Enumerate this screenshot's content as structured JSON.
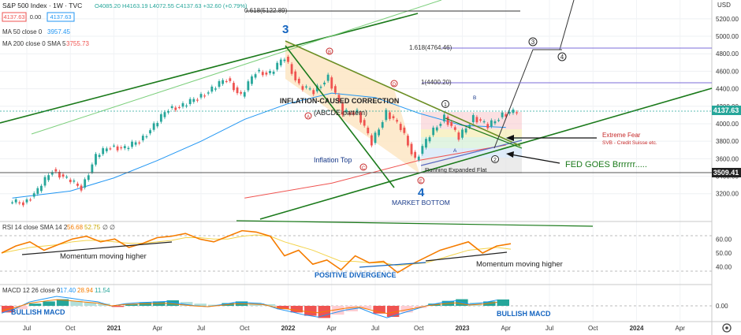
{
  "header": {
    "title": "S&P 500 Index · 1W · TVC",
    "price_box_1": "4137.63",
    "price_box_mid": "0.00",
    "price_box_2": "4137.63",
    "ohlc": "O4085.20 H4163.19 L4072.55 C4137.63 +32.60 (+0.79%)",
    "ma50_label": "MA 50 close 0",
    "ma50_value": "3957.45",
    "ma200_label": "MA 200 close 0 SMA 5",
    "ma200_value": "3755.73"
  },
  "colors": {
    "up": "#26a69a",
    "down": "#ef5350",
    "channel": "#1b7a1b",
    "ma50": "#2196f3",
    "ma200": "#ef5350",
    "fib": "#7b6cd9",
    "rsi": "#f57c00",
    "rsi_ma": "#f3d34a",
    "wedge_fill": "#fde6c4",
    "annot_blue": "#1565c0",
    "annot_red": "#c62828"
  },
  "chart_data": [
    {
      "type": "candlestick",
      "title": "S&P 500 Index · 1W · TVC",
      "ylabel": "USD",
      "x_ticks": [
        "Jul",
        "Oct",
        "2021",
        "Apr",
        "Jul",
        "Oct",
        "2022",
        "Apr",
        "Jul",
        "Oct",
        "2023",
        "Apr",
        "Jul",
        "Oct",
        "2024",
        "Apr"
      ],
      "y_ticks": [
        3200,
        3400,
        3600,
        3800,
        4000,
        4200,
        4400,
        4600,
        4800,
        5000,
        5200
      ],
      "ylim": [
        3080,
        5280
      ],
      "grid": true,
      "last_price": 4137.63,
      "support_level": 3509.41,
      "series_close": [
        {
          "date": "2020-06",
          "close": 3100
        },
        {
          "date": "2020-07",
          "close": 3230
        },
        {
          "date": "2020-08",
          "close": 3480
        },
        {
          "date": "2020-09",
          "close": 3360
        },
        {
          "date": "2020-10",
          "close": 3270
        },
        {
          "date": "2020-11",
          "close": 3620
        },
        {
          "date": "2020-12",
          "close": 3750
        },
        {
          "date": "2021-01",
          "close": 3710
        },
        {
          "date": "2021-02",
          "close": 3810
        },
        {
          "date": "2021-03",
          "close": 3970
        },
        {
          "date": "2021-04",
          "close": 4180
        },
        {
          "date": "2021-05",
          "close": 4200
        },
        {
          "date": "2021-06",
          "close": 4300
        },
        {
          "date": "2021-07",
          "close": 4390
        },
        {
          "date": "2021-08",
          "close": 4520
        },
        {
          "date": "2021-09",
          "close": 4310
        },
        {
          "date": "2021-10",
          "close": 4600
        },
        {
          "date": "2021-11",
          "close": 4570
        },
        {
          "date": "2021-12",
          "close": 4766
        },
        {
          "date": "2022-01",
          "close": 4430
        },
        {
          "date": "2022-02",
          "close": 4370
        },
        {
          "date": "2022-03",
          "close": 4530
        },
        {
          "date": "2022-04",
          "close": 4130
        },
        {
          "date": "2022-05",
          "close": 4130
        },
        {
          "date": "2022-06",
          "close": 3780
        },
        {
          "date": "2022-07",
          "close": 4130
        },
        {
          "date": "2022-08",
          "close": 3955
        },
        {
          "date": "2022-09",
          "close": 3585
        },
        {
          "date": "2022-10",
          "close": 3870
        },
        {
          "date": "2022-11",
          "close": 4080
        },
        {
          "date": "2022-12",
          "close": 3840
        },
        {
          "date": "2023-01",
          "close": 4077
        },
        {
          "date": "2023-02",
          "close": 3970
        },
        {
          "date": "2023-03",
          "close": 4109
        },
        {
          "date": "2023-04",
          "close": 4137.63
        }
      ],
      "ma50": [
        {
          "date": "2020-06",
          "value": 3150
        },
        {
          "date": "2020-10",
          "value": 3230
        },
        {
          "date": "2021-01",
          "value": 3380
        },
        {
          "date": "2021-04",
          "value": 3580
        },
        {
          "date": "2021-07",
          "value": 3800
        },
        {
          "date": "2021-10",
          "value": 4050
        },
        {
          "date": "2022-01",
          "value": 4230
        },
        {
          "date": "2022-04",
          "value": 4350
        },
        {
          "date": "2022-07",
          "value": 4300
        },
        {
          "date": "2022-10",
          "value": 4120
        },
        {
          "date": "2023-01",
          "value": 3980
        },
        {
          "date": "2023-04",
          "value": 3957.45
        }
      ],
      "ma200": [
        {
          "date": "2021-10",
          "value": 3150
        },
        {
          "date": "2022-04",
          "value": 3320
        },
        {
          "date": "2022-10",
          "value": 3580
        },
        {
          "date": "2023-04",
          "value": 3755.73
        }
      ],
      "fib_levels": [
        {
          "label": "0.618(5122.89)",
          "value": 5122.89
        },
        {
          "label": "1.618(4764.46)",
          "value": 4764.46
        },
        {
          "label": "1(4400.20)",
          "value": 4400.2
        }
      ],
      "annotations": [
        {
          "text": "3",
          "kind": "wave"
        },
        {
          "text": "4",
          "kind": "wave"
        },
        {
          "text": "INFLATION-CAUSED CORRECTION",
          "kind": "label"
        },
        {
          "text": "(ABCDE-pattern)",
          "kind": "label"
        },
        {
          "text": "Inflation Top",
          "kind": "label"
        },
        {
          "text": "MARKET BOTTOM",
          "kind": "label"
        },
        {
          "text": "Running Expanded Flat",
          "kind": "label"
        },
        {
          "text": "Extreme Fear",
          "kind": "label"
        },
        {
          "text": "SVB - Credit Suisse etc.",
          "kind": "label"
        },
        {
          "text": "FED GOES Brrrrrr.....",
          "kind": "label"
        },
        {
          "text": "A",
          "kind": "wedge"
        },
        {
          "text": "B",
          "kind": "wedge"
        },
        {
          "text": "C",
          "kind": "wedge"
        },
        {
          "text": "D",
          "kind": "wedge"
        },
        {
          "text": "E",
          "kind": "wedge"
        },
        {
          "text": "1",
          "kind": "circle"
        },
        {
          "text": "2",
          "kind": "circle"
        },
        {
          "text": "3",
          "kind": "circle"
        },
        {
          "text": "4",
          "kind": "circle"
        },
        {
          "text": "A",
          "kind": "flat"
        },
        {
          "text": "B",
          "kind": "flat"
        }
      ]
    },
    {
      "type": "line",
      "title": "RSI 14 close SMA 14 2",
      "values_label": [
        "56.68",
        "52.75",
        "∅",
        "∅"
      ],
      "y_ticks": [
        40,
        50,
        60
      ],
      "ylim": [
        28,
        72
      ],
      "series": [
        {
          "name": "RSI",
          "values": [
            50,
            55,
            58,
            52,
            56,
            60,
            62,
            58,
            60,
            54,
            57,
            61,
            62,
            64,
            60,
            58,
            62,
            66,
            65,
            62,
            48,
            52,
            42,
            45,
            38,
            48,
            43,
            44,
            36,
            42,
            47,
            52,
            55,
            58,
            50,
            55,
            56.68
          ]
        },
        {
          "name": "RSI SMA",
          "values": [
            50,
            52,
            54,
            55,
            56,
            58,
            59,
            59,
            58,
            57,
            57,
            58,
            59,
            61,
            61,
            60,
            60,
            62,
            63,
            62,
            58,
            55,
            52,
            48,
            44,
            44,
            43,
            43,
            41,
            42,
            43,
            46,
            49,
            52,
            53,
            54,
            52.75
          ]
        }
      ],
      "annotations": [
        "Momentum moving higher",
        "POSITIVE DIVERGENCE",
        "Momentum moving higher"
      ]
    },
    {
      "type": "bar",
      "title": "MACD 12 26 close 9",
      "values_label": [
        "17.40",
        "28.94",
        "11.54"
      ],
      "y_ticks": [
        0
      ],
      "histogram": [
        -12,
        -6,
        4,
        8,
        12,
        9,
        6,
        4,
        -2,
        3,
        6,
        8,
        10,
        7,
        4,
        2,
        5,
        8,
        6,
        3,
        -6,
        -12,
        -18,
        -22,
        -16,
        -10,
        -6,
        -14,
        -20,
        -12,
        -4,
        4,
        9,
        12,
        6,
        8,
        11.54
      ],
      "annotations": [
        "BULLISH MACD",
        "BULLISH MACD"
      ]
    }
  ]
}
